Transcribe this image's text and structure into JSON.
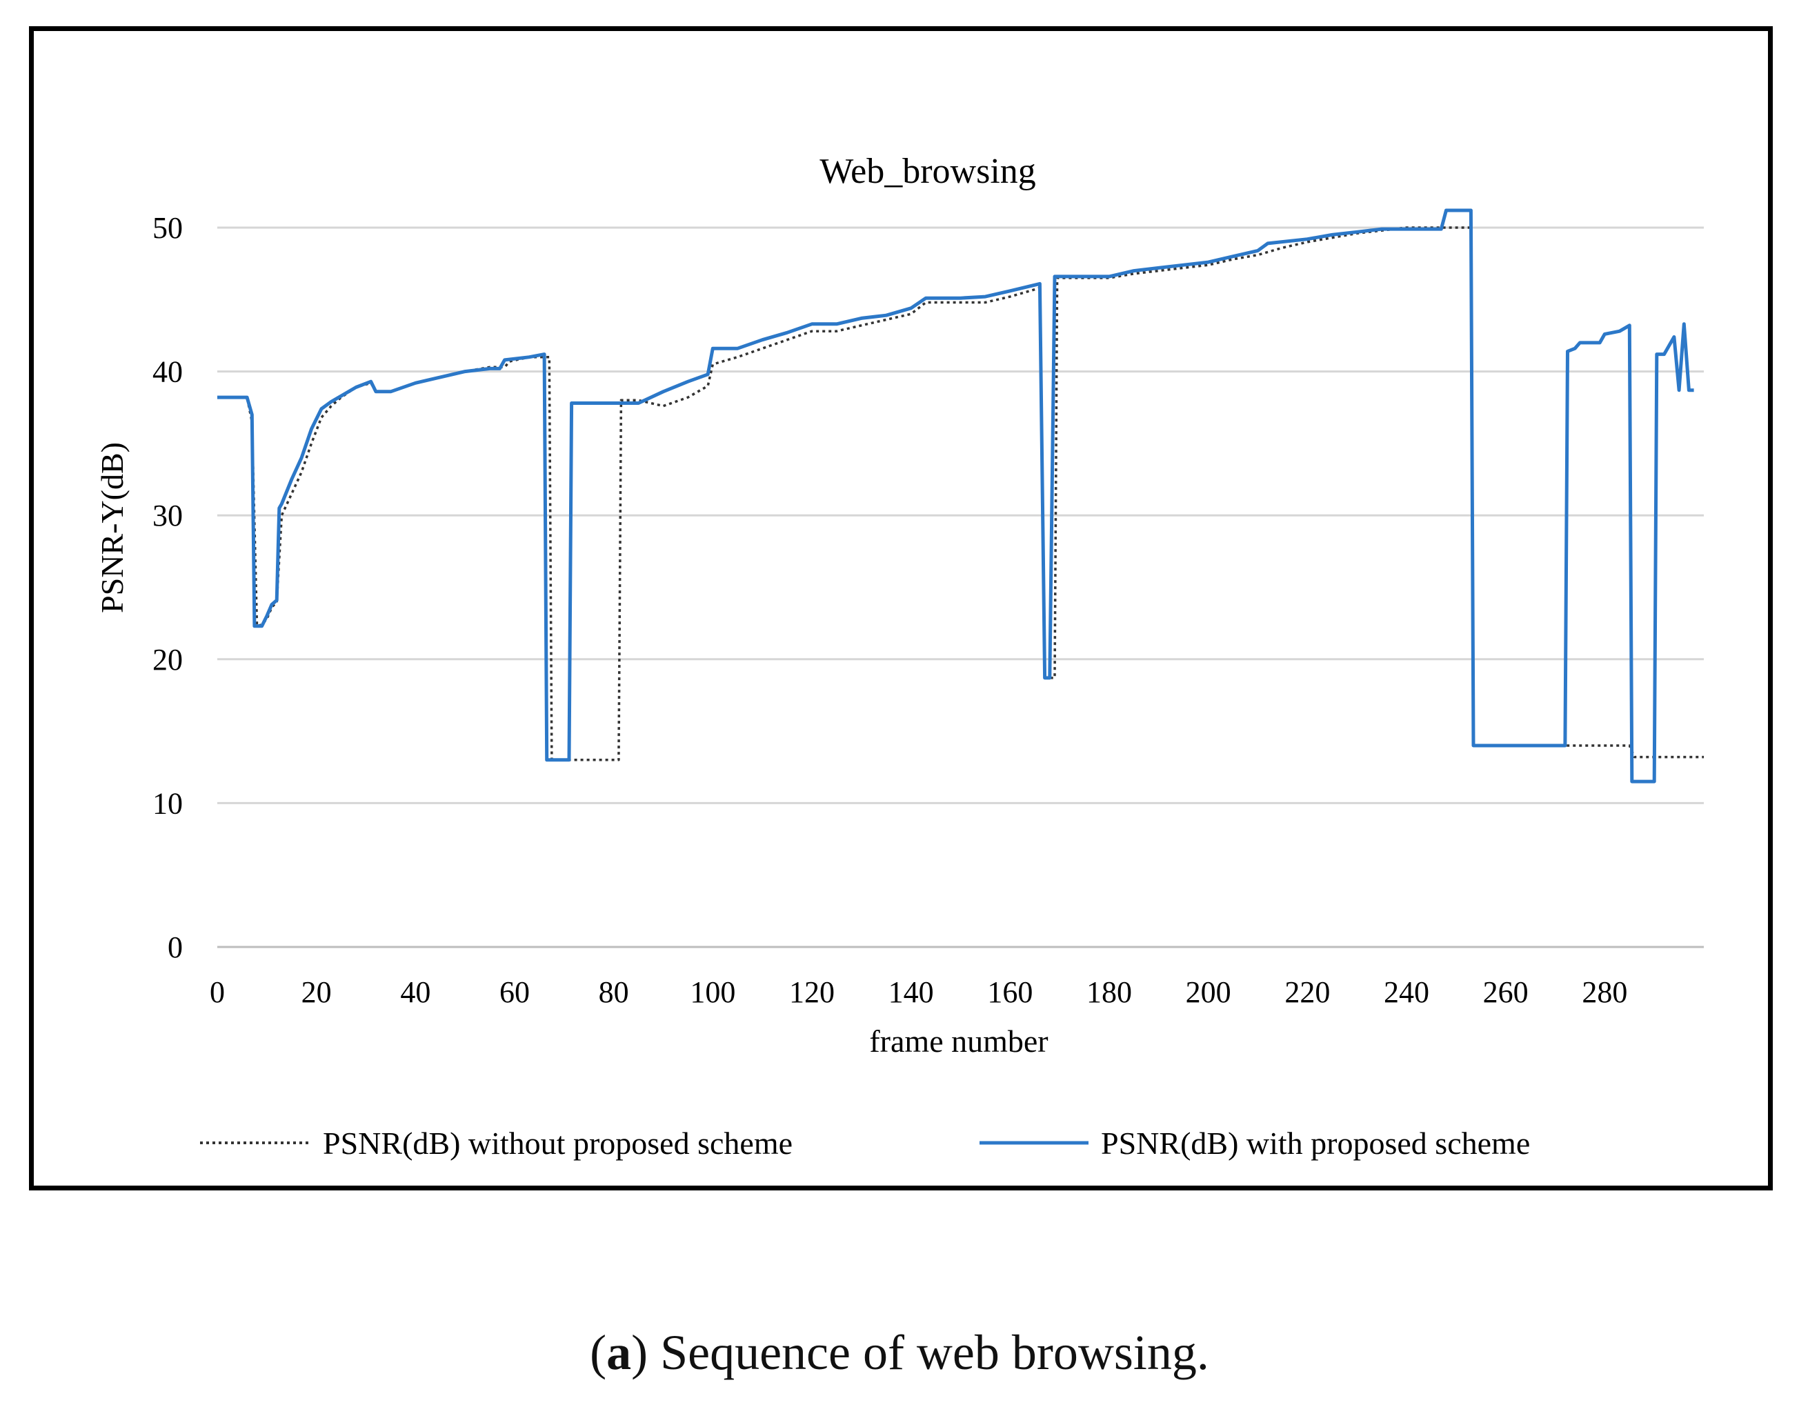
{
  "caption": {
    "label": "a",
    "text": "Sequence of web browsing."
  },
  "chart_data": {
    "type": "line",
    "title": "Web_browsing",
    "xlabel": "frame number",
    "ylabel": "PSNR-Y(dB)",
    "xlim": [
      0,
      300
    ],
    "ylim": [
      0,
      50
    ],
    "xticks": [
      0,
      20,
      40,
      60,
      80,
      100,
      120,
      140,
      160,
      180,
      200,
      220,
      240,
      260,
      280
    ],
    "yticks": [
      0,
      10,
      20,
      30,
      40,
      50
    ],
    "grid": true,
    "legend_position": "bottom",
    "series": [
      {
        "name": "PSNR(dB) without proposed scheme",
        "style": "dotted",
        "color": "#333333",
        "points": [
          [
            0,
            38.2
          ],
          [
            6,
            38.2
          ],
          [
            7,
            36.5
          ],
          [
            8,
            22.3
          ],
          [
            9,
            22.4
          ],
          [
            10,
            22.8
          ],
          [
            11,
            23.6
          ],
          [
            12,
            24.0
          ],
          [
            13,
            30.0
          ],
          [
            15,
            31.5
          ],
          [
            17,
            33.0
          ],
          [
            19,
            35.0
          ],
          [
            21,
            36.8
          ],
          [
            23,
            37.6
          ],
          [
            25,
            38.2
          ],
          [
            28,
            38.9
          ],
          [
            31,
            39.2
          ],
          [
            32,
            38.6
          ],
          [
            35,
            38.6
          ],
          [
            40,
            39.2
          ],
          [
            45,
            39.6
          ],
          [
            50,
            40.0
          ],
          [
            55,
            40.3
          ],
          [
            58,
            40.3
          ],
          [
            59,
            40.7
          ],
          [
            63,
            41.0
          ],
          [
            67,
            41.0
          ],
          [
            67.5,
            13.0
          ],
          [
            81,
            13.0
          ],
          [
            81.5,
            38.0
          ],
          [
            85,
            38.0
          ],
          [
            90,
            37.6
          ],
          [
            95,
            38.2
          ],
          [
            99,
            39.0
          ],
          [
            100,
            40.5
          ],
          [
            105,
            41.0
          ],
          [
            110,
            41.6
          ],
          [
            115,
            42.2
          ],
          [
            120,
            42.8
          ],
          [
            125,
            42.8
          ],
          [
            130,
            43.2
          ],
          [
            135,
            43.6
          ],
          [
            140,
            44.0
          ],
          [
            143,
            44.8
          ],
          [
            150,
            44.8
          ],
          [
            155,
            44.8
          ],
          [
            160,
            45.2
          ],
          [
            166,
            45.8
          ],
          [
            167,
            18.7
          ],
          [
            169,
            18.7
          ],
          [
            169.5,
            46.5
          ],
          [
            180,
            46.5
          ],
          [
            185,
            46.8
          ],
          [
            190,
            47.0
          ],
          [
            195,
            47.2
          ],
          [
            200,
            47.4
          ],
          [
            205,
            47.8
          ],
          [
            210,
            48.1
          ],
          [
            215,
            48.6
          ],
          [
            220,
            49.0
          ],
          [
            225,
            49.3
          ],
          [
            230,
            49.6
          ],
          [
            235,
            49.8
          ],
          [
            240,
            50.0
          ],
          [
            253,
            50.0
          ],
          [
            253.5,
            14.0
          ],
          [
            260,
            14.0
          ],
          [
            270,
            14.0
          ],
          [
            285,
            14.0
          ],
          [
            286,
            13.2
          ],
          [
            300,
            13.2
          ]
        ]
      },
      {
        "name": "PSNR(dB) with proposed scheme",
        "style": "solid",
        "color": "#2c78c8",
        "points": [
          [
            0,
            38.2
          ],
          [
            6,
            38.2
          ],
          [
            7,
            37.0
          ],
          [
            7.5,
            22.3
          ],
          [
            9,
            22.3
          ],
          [
            10,
            23.0
          ],
          [
            11,
            23.8
          ],
          [
            12,
            24.1
          ],
          [
            12.5,
            30.5
          ],
          [
            13,
            30.8
          ],
          [
            15,
            32.5
          ],
          [
            17,
            34.0
          ],
          [
            19,
            36.0
          ],
          [
            21,
            37.4
          ],
          [
            23,
            37.9
          ],
          [
            25,
            38.3
          ],
          [
            28,
            38.9
          ],
          [
            31,
            39.3
          ],
          [
            32,
            38.6
          ],
          [
            35,
            38.6
          ],
          [
            40,
            39.2
          ],
          [
            45,
            39.6
          ],
          [
            50,
            40.0
          ],
          [
            55,
            40.2
          ],
          [
            57,
            40.2
          ],
          [
            58,
            40.8
          ],
          [
            63,
            41.0
          ],
          [
            66,
            41.2
          ],
          [
            66.5,
            13.0
          ],
          [
            71,
            13.0
          ],
          [
            71.5,
            37.8
          ],
          [
            75,
            37.8
          ],
          [
            85,
            37.8
          ],
          [
            90,
            38.6
          ],
          [
            95,
            39.3
          ],
          [
            99,
            39.8
          ],
          [
            100,
            41.6
          ],
          [
            105,
            41.6
          ],
          [
            110,
            42.2
          ],
          [
            115,
            42.7
          ],
          [
            120,
            43.3
          ],
          [
            125,
            43.3
          ],
          [
            130,
            43.7
          ],
          [
            135,
            43.9
          ],
          [
            140,
            44.4
          ],
          [
            143,
            45.1
          ],
          [
            150,
            45.1
          ],
          [
            155,
            45.2
          ],
          [
            160,
            45.6
          ],
          [
            166,
            46.1
          ],
          [
            167,
            18.7
          ],
          [
            168,
            18.7
          ],
          [
            169,
            46.6
          ],
          [
            180,
            46.6
          ],
          [
            185,
            47.0
          ],
          [
            190,
            47.2
          ],
          [
            195,
            47.4
          ],
          [
            200,
            47.6
          ],
          [
            205,
            48.0
          ],
          [
            210,
            48.4
          ],
          [
            212,
            48.9
          ],
          [
            220,
            49.2
          ],
          [
            225,
            49.5
          ],
          [
            230,
            49.7
          ],
          [
            235,
            49.9
          ],
          [
            247,
            49.9
          ],
          [
            248,
            51.2
          ],
          [
            253,
            51.2
          ],
          [
            253.5,
            14.0
          ],
          [
            260,
            14.0
          ],
          [
            272,
            14.0
          ],
          [
            272.5,
            41.4
          ],
          [
            274,
            41.6
          ],
          [
            275,
            42.0
          ],
          [
            279,
            42.0
          ],
          [
            280,
            42.6
          ],
          [
            283,
            42.8
          ],
          [
            285,
            43.2
          ],
          [
            285.5,
            11.5
          ],
          [
            290,
            11.5
          ],
          [
            290.5,
            41.2
          ],
          [
            292,
            41.2
          ],
          [
            294,
            42.4
          ],
          [
            295,
            38.7
          ],
          [
            296,
            43.3
          ],
          [
            297,
            38.7
          ],
          [
            298,
            38.7
          ]
        ]
      }
    ]
  }
}
